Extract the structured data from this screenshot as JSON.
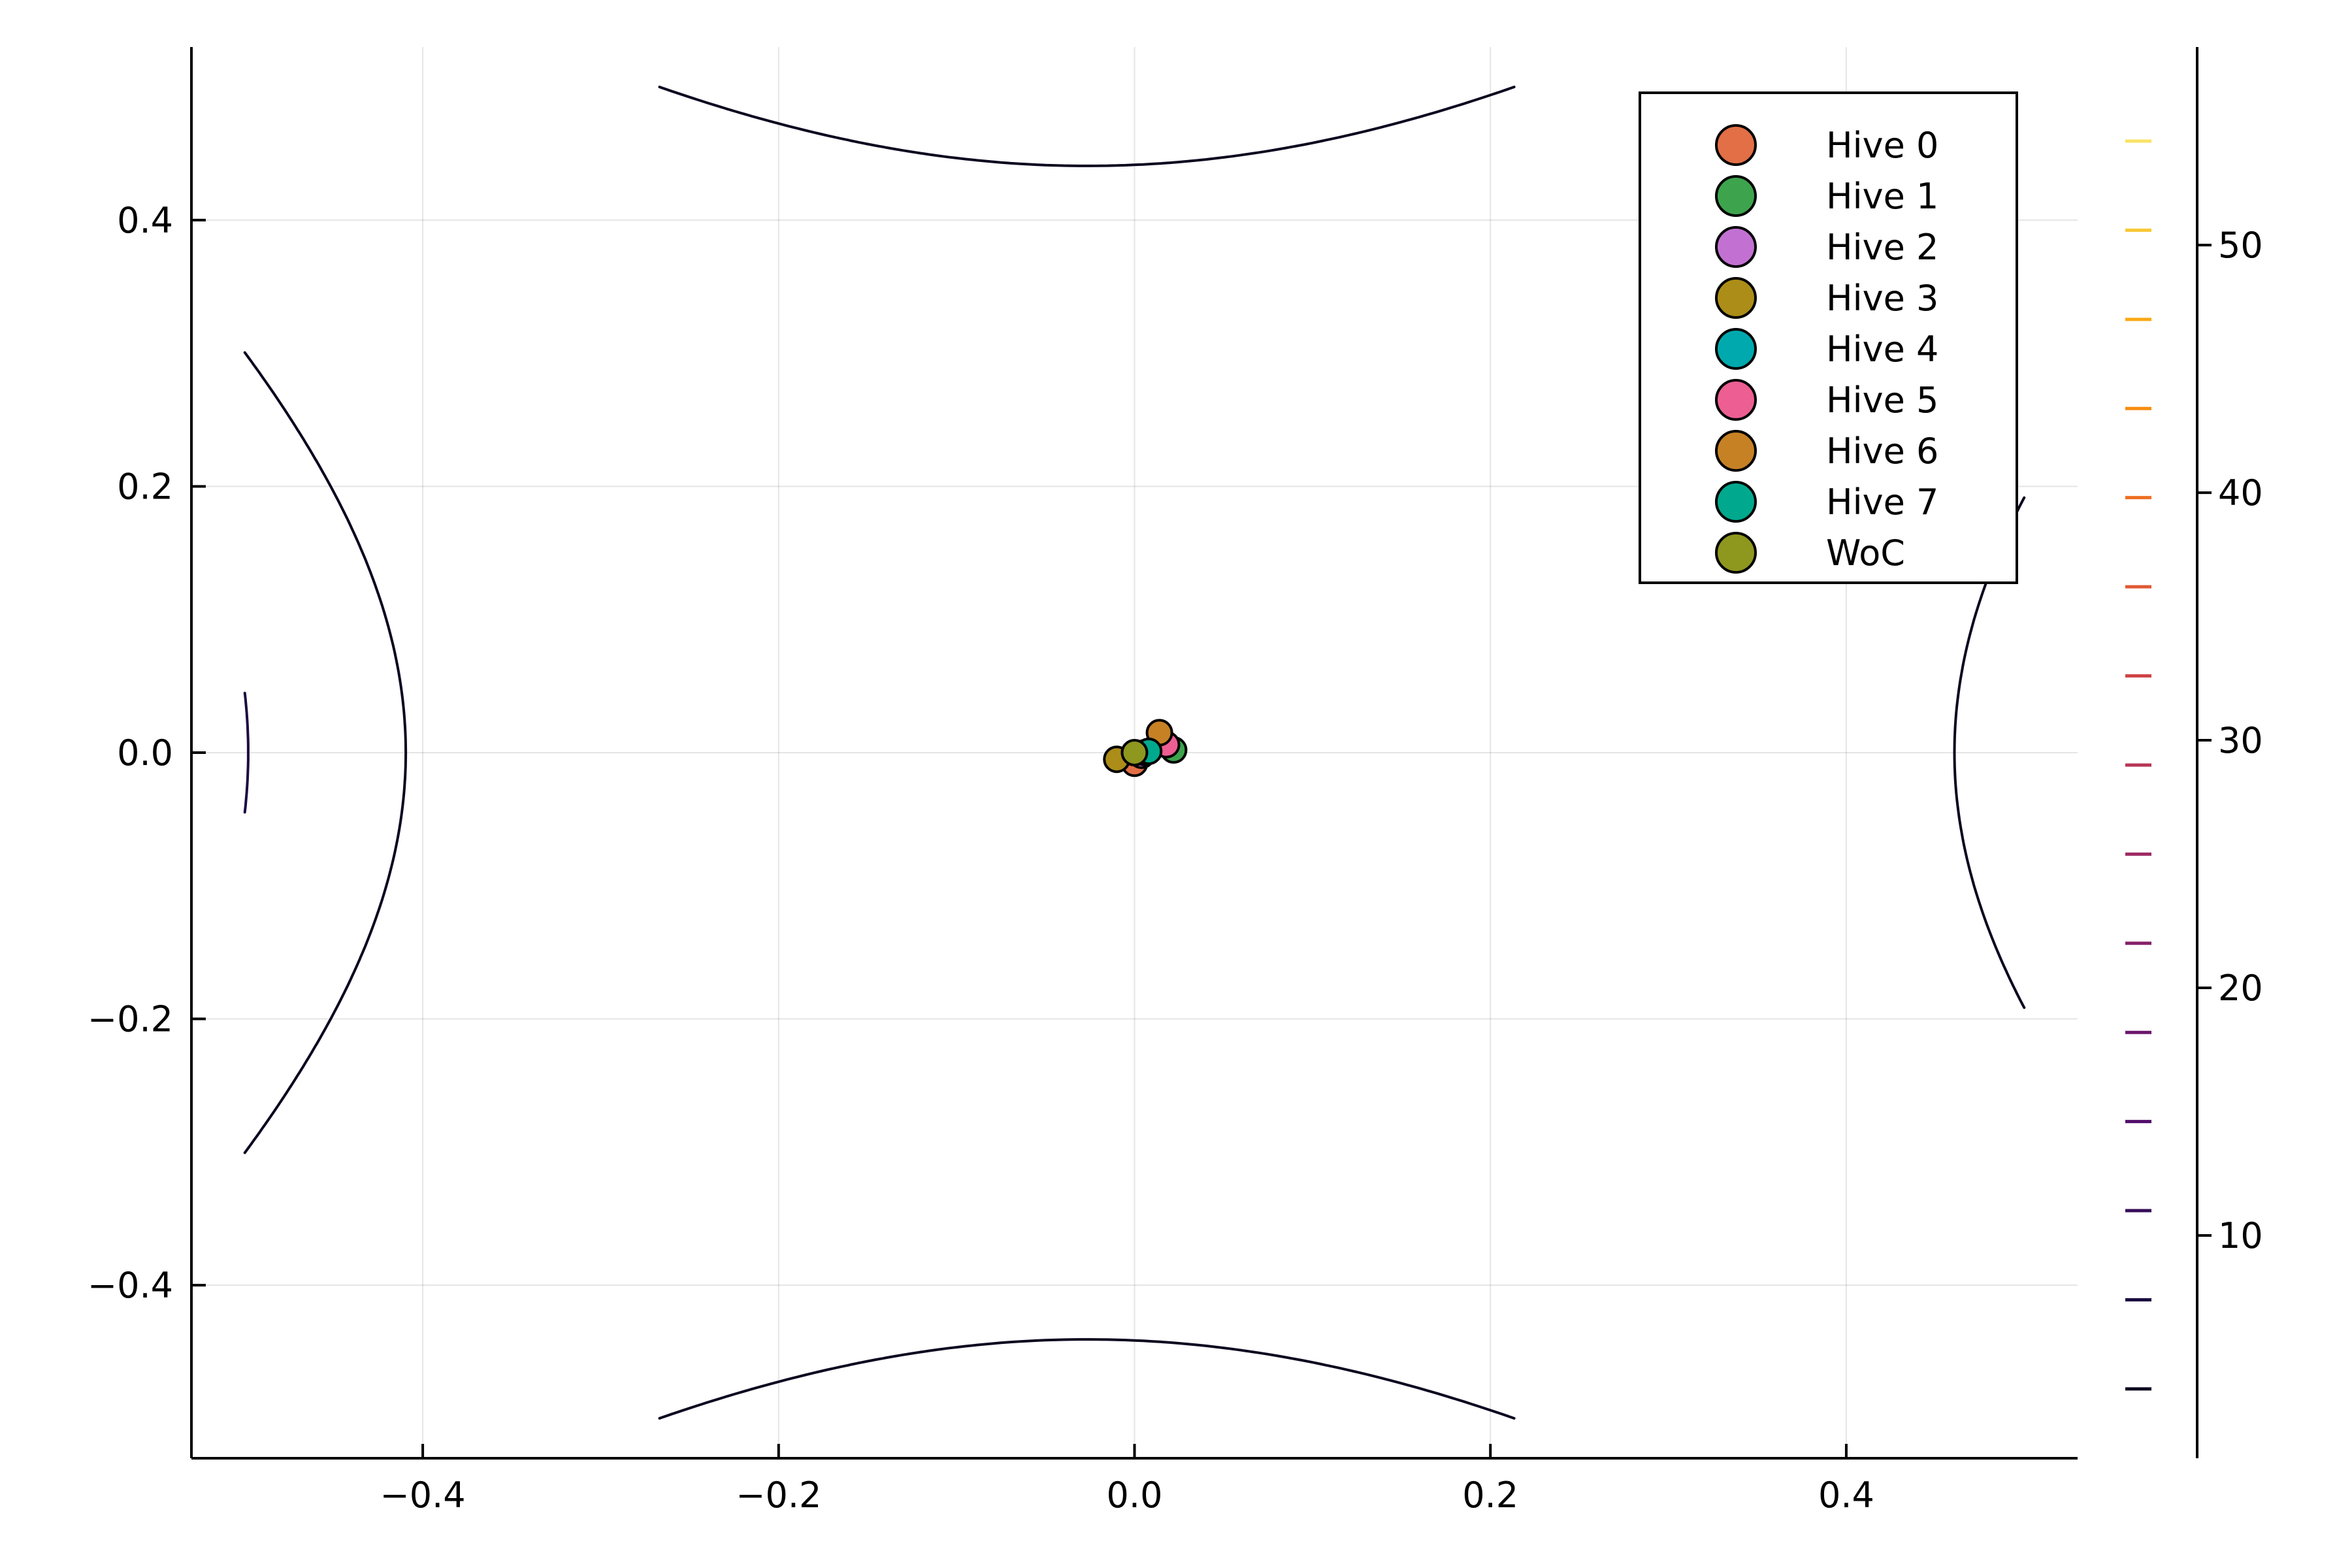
{
  "chart_data": {
    "type": "scatter",
    "title": "",
    "xlabel": "",
    "ylabel": "",
    "xlim": [
      -0.53,
      0.53
    ],
    "ylim": [
      -0.53,
      0.53
    ],
    "x_ticks": [
      -0.4,
      -0.2,
      0.0,
      0.2,
      0.4
    ],
    "x_tick_labels": [
      "−0.4",
      "−0.2",
      "0.0",
      "0.2",
      "0.4"
    ],
    "y_ticks": [
      -0.4,
      -0.2,
      0.0,
      0.2,
      0.4
    ],
    "y_tick_labels": [
      "−0.4",
      "−0.2",
      "0.0",
      "0.2",
      "0.4"
    ],
    "grid": true,
    "legend_position": "top-right",
    "contour": {
      "function": "f(x, y) = 100 * (x^2 - y^2)^2 + (1 - x)^2 - 1 (Rosenbrock-style surface near the origin)",
      "x_range": [
        -0.5,
        0.5
      ],
      "y_range": [
        -0.5,
        0.5
      ],
      "levels": [
        3.8,
        7.4,
        11.0,
        14.6,
        18.2,
        21.8,
        25.4,
        29.0,
        32.6,
        36.2,
        39.8,
        43.4,
        47.0,
        50.6,
        54.2
      ],
      "colorbar_range": [
        1,
        58
      ],
      "colorbar_ticks": [
        10,
        20,
        30,
        40,
        50
      ],
      "colorbar_tick_labels": [
        "10",
        "20",
        "30",
        "40",
        "50"
      ],
      "colormap": [
        "#000004",
        "#1b0c41",
        "#4a0c6b",
        "#781c6d",
        "#a52c60",
        "#cf4446",
        "#ed6925",
        "#fb9b06",
        "#f7d13d",
        "#fcffa4"
      ]
    },
    "series": [
      {
        "name": "Hive 0",
        "color": "#e26f46",
        "x": [
          0.0
        ],
        "y": [
          -0.008
        ]
      },
      {
        "name": "Hive 1",
        "color": "#3da44d",
        "x": [
          0.022
        ],
        "y": [
          0.002
        ]
      },
      {
        "name": "Hive 2",
        "color": "#c271d2",
        "x": [
          0.004
        ],
        "y": [
          -0.002
        ]
      },
      {
        "name": "Hive 3",
        "color": "#ac8d18",
        "x": [
          -0.01
        ],
        "y": [
          -0.005
        ]
      },
      {
        "name": "Hive 4",
        "color": "#00a9ad",
        "x": [
          0.006
        ],
        "y": [
          0.0
        ]
      },
      {
        "name": "Hive 5",
        "color": "#ed5e93",
        "x": [
          0.018
        ],
        "y": [
          0.006
        ]
      },
      {
        "name": "Hive 6",
        "color": "#c68125",
        "x": [
          0.014
        ],
        "y": [
          0.015
        ]
      },
      {
        "name": "Hive 7",
        "color": "#00a98d",
        "x": [
          0.008
        ],
        "y": [
          0.001
        ]
      },
      {
        "name": "WoC",
        "color": "#8e971e",
        "x": [
          0.0
        ],
        "y": [
          0.0
        ]
      }
    ]
  }
}
